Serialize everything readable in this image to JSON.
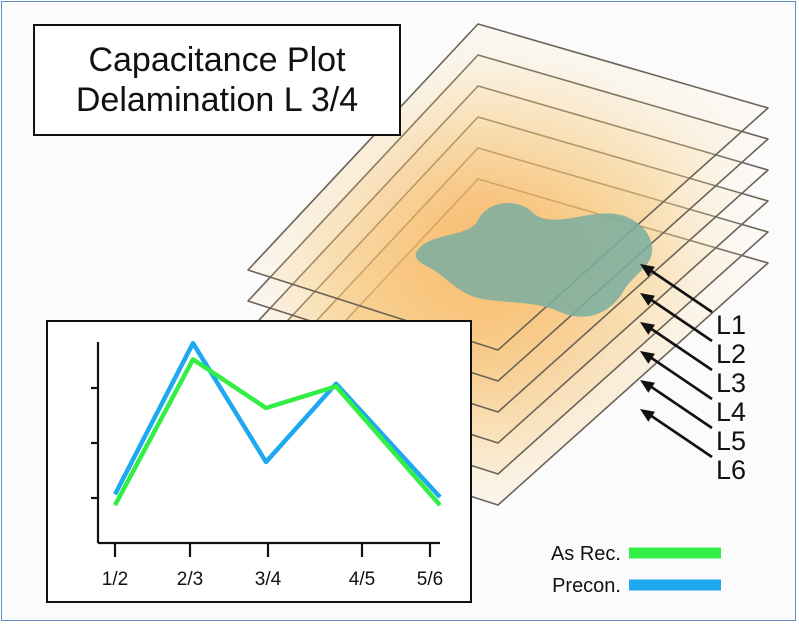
{
  "title": {
    "line1": "Capacitance Plot",
    "line2": "Delamination L 3/4"
  },
  "layers": [
    "L1",
    "L2",
    "L3",
    "L4",
    "L5",
    "L6"
  ],
  "colors": {
    "as_rec": "#33ee44",
    "precon": "#1ea8f0",
    "defect": "#7aaea0",
    "layer_edge": "#6b6357"
  },
  "chart_data": {
    "type": "line",
    "categories": [
      "1/2",
      "2/3",
      "3/4",
      "4/5",
      "5/6"
    ],
    "x": [
      0,
      1,
      2,
      2.8,
      4
    ],
    "ylim": [
      0,
      4
    ],
    "series": [
      {
        "name": "As Rec.",
        "values": [
          0.7,
          3.4,
          2.5,
          2.9,
          0.7
        ]
      },
      {
        "name": "Precon.",
        "values": [
          0.9,
          3.7,
          1.5,
          2.95,
          0.85
        ]
      }
    ],
    "legend": [
      "As Rec.",
      "Precon."
    ],
    "legend_position": "bottom-right"
  }
}
